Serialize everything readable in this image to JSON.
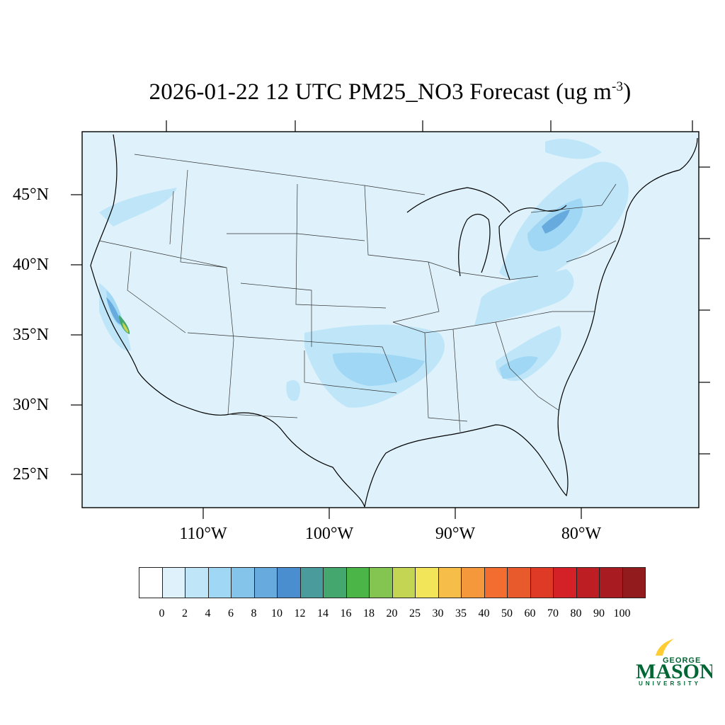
{
  "title": {
    "main": "2026-01-22 12 UTC PM25_NO3 Forecast (ug m",
    "exponent": "-3",
    "close": ")"
  },
  "map": {
    "background_color": "#dff2fb",
    "lat_labels": [
      "45°N",
      "40°N",
      "35°N",
      "30°N",
      "25°N"
    ],
    "lon_labels": [
      "110°W",
      "100°W",
      "90°W",
      "80°W"
    ]
  },
  "colorbar": {
    "colors": [
      "#ffffff",
      "#dff2fb",
      "#bfe6f8",
      "#a0d7f4",
      "#84c4ea",
      "#67aadd",
      "#4a8ecf",
      "#4a9b9b",
      "#44a86e",
      "#4bb547",
      "#84c451",
      "#c3d552",
      "#f3e55a",
      "#f6bd48",
      "#f5973b",
      "#f26d2f",
      "#e85a2b",
      "#df3a26",
      "#d42128",
      "#bc1e24",
      "#a81c21",
      "#921b1d"
    ],
    "labels": [
      "0",
      "2",
      "4",
      "6",
      "8",
      "10",
      "12",
      "14",
      "16",
      "18",
      "20",
      "25",
      "30",
      "35",
      "40",
      "50",
      "60",
      "70",
      "80",
      "90",
      "100"
    ]
  },
  "logo": {
    "top": "GEORGE",
    "main": "MASON",
    "bottom": "UNIVERSITY",
    "color": "#006633",
    "accent": "#ffcc33"
  }
}
